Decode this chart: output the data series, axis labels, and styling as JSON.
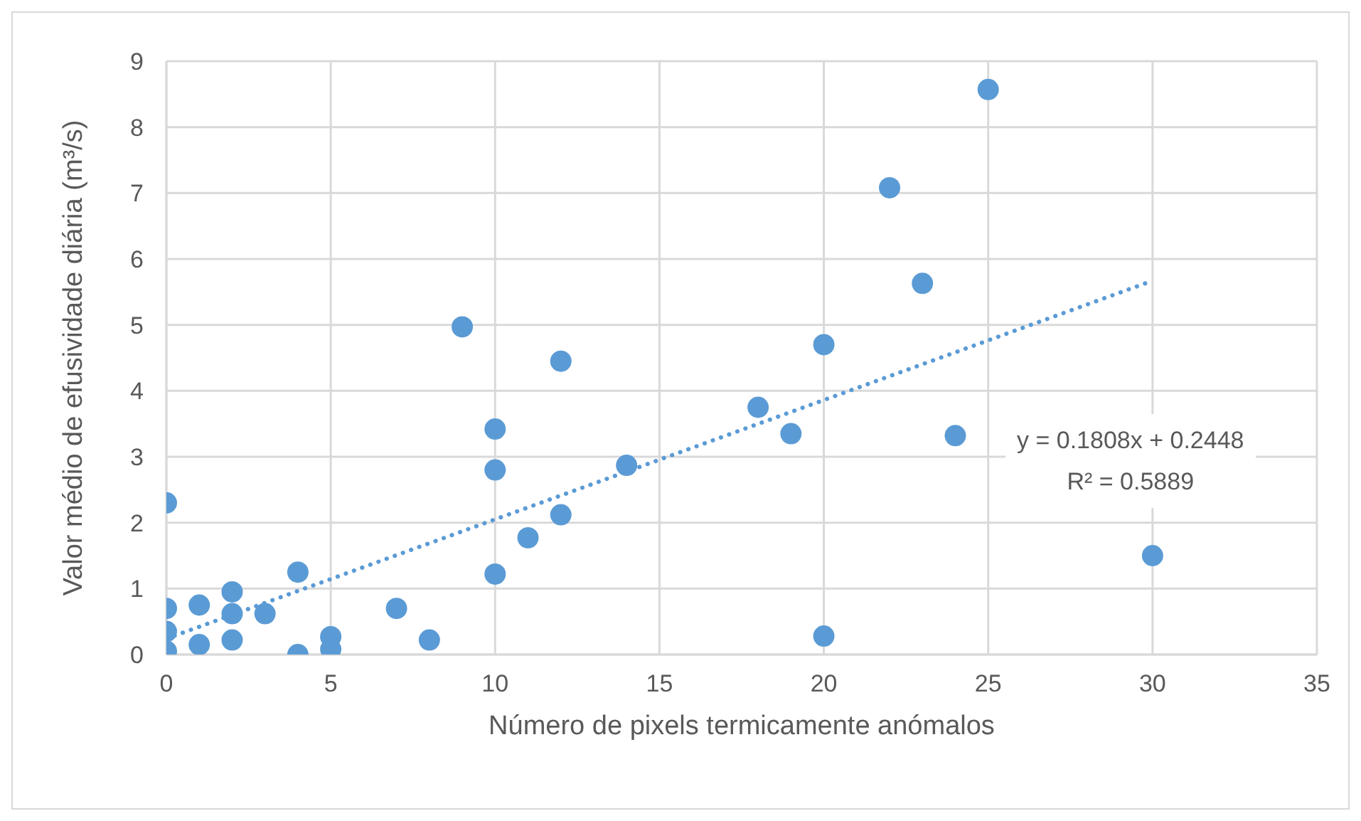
{
  "chart_data": {
    "type": "scatter",
    "xlabel": "Número de pixels termicamente anómalos",
    "ylabel": "Valor médio de efusividade diária (m³/s)",
    "xlim": [
      0,
      35
    ],
    "xticks": [
      0,
      5,
      10,
      15,
      20,
      25,
      30,
      35
    ],
    "ylim": [
      0,
      9
    ],
    "yticks": [
      0,
      1,
      2,
      3,
      4,
      5,
      6,
      7,
      8,
      9
    ],
    "grid": true,
    "marker": "circle",
    "series": [
      {
        "color": "#5b9bd5",
        "x": [
          0,
          0,
          0,
          0,
          1,
          1,
          2,
          2,
          2,
          3,
          4,
          4,
          5,
          5,
          7,
          8,
          9,
          10,
          10,
          10,
          11,
          12,
          12,
          14,
          18,
          19,
          20,
          20,
          22,
          23,
          24,
          25,
          30
        ],
        "values": [
          2.3,
          0.7,
          0.35,
          0.05,
          0.75,
          0.15,
          0.95,
          0.62,
          0.22,
          0.62,
          1.25,
          0,
          0.27,
          0.08,
          0.7,
          0.22,
          4.97,
          3.42,
          2.8,
          1.22,
          1.77,
          4.45,
          2.12,
          2.87,
          3.75,
          3.35,
          4.7,
          0.28,
          7.08,
          5.63,
          3.32,
          8.57,
          1.5
        ]
      },
      {
        "type": "line",
        "color": "#5b9bd5",
        "line_style": "dotted",
        "marker": "none",
        "x": [
          0,
          30
        ],
        "values": [
          0.24,
          5.67
        ]
      }
    ],
    "annotations": [
      "y = 0.1808x + 0.2448",
      "R² = 0.5889"
    ]
  }
}
